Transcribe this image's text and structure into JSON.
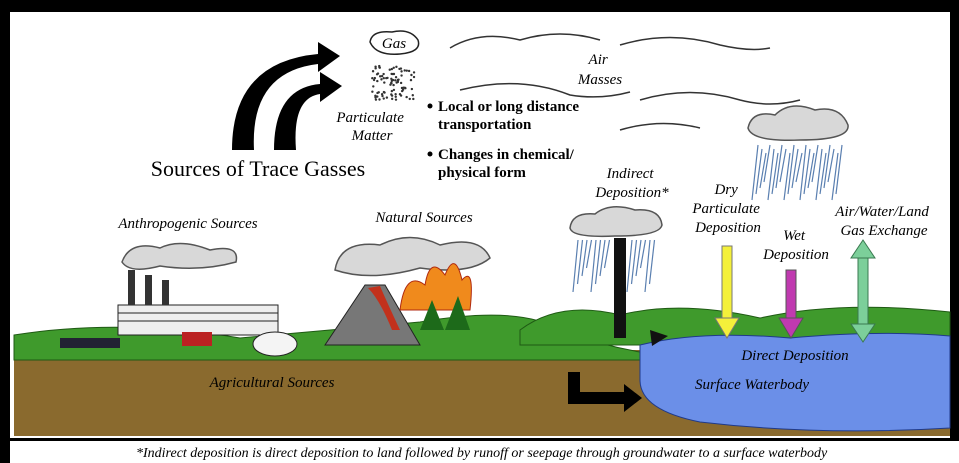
{
  "title": "Sources of Trace Gasses",
  "labels": {
    "gas": "Gas",
    "particulate_matter": [
      "Particulate",
      "Matter"
    ],
    "air_masses": [
      "Air",
      "Masses"
    ],
    "anthropogenic_sources": "Anthropogenic Sources",
    "natural_sources": "Natural Sources",
    "agricultural_sources": "Agricultural Sources",
    "indirect_deposition": [
      "Indirect",
      "Deposition*"
    ],
    "dry_deposition": [
      "Dry",
      "Particulate",
      "Deposition"
    ],
    "wet_deposition": [
      "Wet",
      "Deposition"
    ],
    "gas_exchange": [
      "Air/Water/Land",
      "Gas Exchange"
    ],
    "direct_deposition": "Direct Deposition",
    "surface_waterbody": "Surface Waterbody"
  },
  "bullets": [
    [
      "Local or long distance",
      "transportation"
    ],
    [
      "Changes in chemical/",
      "physical form"
    ]
  ],
  "footnote": "*Indirect deposition is direct deposition to land followed by runoff or seepage through groundwater to a surface waterbody"
}
